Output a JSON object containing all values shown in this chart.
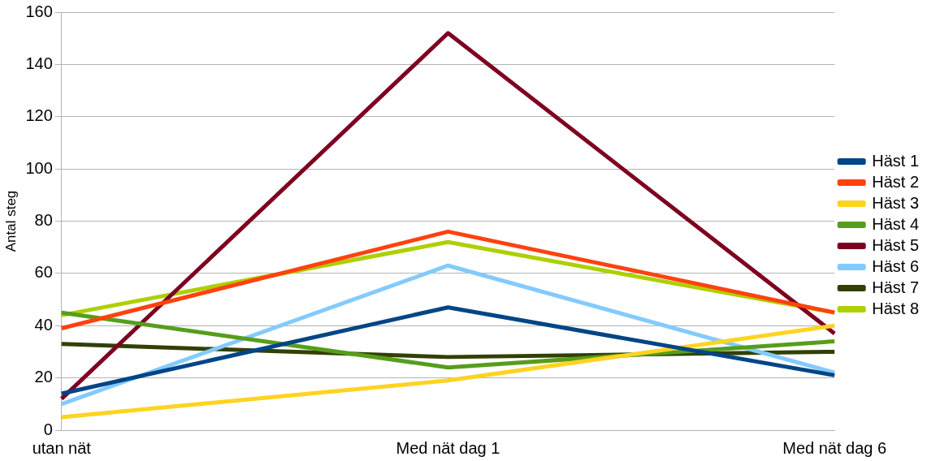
{
  "chart_data": {
    "type": "line",
    "ylabel": "Antal steg",
    "categories": [
      "utan nät",
      "Med nät dag 1",
      "Med nät dag 6"
    ],
    "series": [
      {
        "name": "Häst 1",
        "color": "#004586",
        "values": [
          14,
          47,
          21
        ]
      },
      {
        "name": "Häst 2",
        "color": "#ff420e",
        "values": [
          39,
          76,
          45
        ]
      },
      {
        "name": "Häst 3",
        "color": "#ffd320",
        "values": [
          5,
          19,
          40
        ]
      },
      {
        "name": "Häst 4",
        "color": "#579d1c",
        "values": [
          45,
          24,
          34
        ]
      },
      {
        "name": "Häst 5",
        "color": "#7e0021",
        "values": [
          12,
          152,
          37
        ]
      },
      {
        "name": "Häst 6",
        "color": "#83caff",
        "values": [
          10,
          63,
          22
        ]
      },
      {
        "name": "Häst 7",
        "color": "#314004",
        "values": [
          33,
          28,
          30
        ]
      },
      {
        "name": "Häst 8",
        "color": "#aecf00",
        "values": [
          44,
          72,
          45
        ]
      }
    ],
    "ylim": [
      0,
      160
    ],
    "yticks": [
      0,
      20,
      40,
      60,
      80,
      100,
      120,
      140,
      160
    ],
    "grid": "y",
    "legend": "right",
    "marker": "none",
    "line_style": "solid"
  }
}
